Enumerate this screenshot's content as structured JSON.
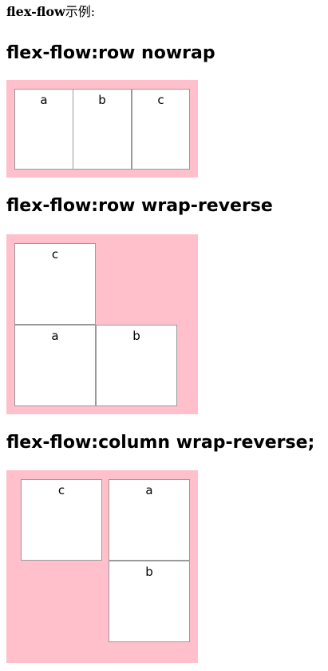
{
  "intro": {
    "bold": "flex-flow",
    "rest": "示例:"
  },
  "sections": [
    {
      "heading": "flex-flow:row nowrap",
      "items": [
        "a",
        "b",
        "c"
      ]
    },
    {
      "heading": "flex-flow:row wrap-reverse",
      "items": [
        "c",
        "a",
        "b"
      ]
    },
    {
      "heading": "flex-flow:column wrap-reverse;",
      "items": [
        "c",
        "a",
        "b"
      ]
    }
  ],
  "colors": {
    "container_bg": "#ffc0cb",
    "item_bg": "#ffffff",
    "item_border": "#9a9a9a"
  }
}
